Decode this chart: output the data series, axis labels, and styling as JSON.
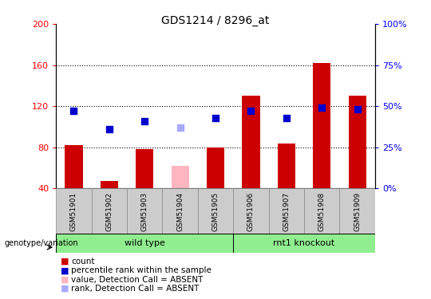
{
  "title": "GDS1214 / 8296_at",
  "categories": [
    "GSM51901",
    "GSM51902",
    "GSM51903",
    "GSM51904",
    "GSM51905",
    "GSM51906",
    "GSM51907",
    "GSM51908",
    "GSM51909"
  ],
  "count_values": [
    82,
    47,
    78,
    40,
    80,
    130,
    84,
    162,
    130
  ],
  "rank_values": [
    47,
    36,
    41,
    null,
    43,
    47,
    43,
    49,
    48
  ],
  "absent_count": [
    null,
    null,
    null,
    62,
    null,
    null,
    null,
    null,
    null
  ],
  "absent_rank": [
    null,
    null,
    null,
    37,
    null,
    null,
    null,
    null,
    null
  ],
  "ylim_left": [
    40,
    200
  ],
  "ylim_right": [
    0,
    100
  ],
  "yticks_left": [
    40,
    80,
    120,
    160,
    200
  ],
  "yticks_right": [
    0,
    25,
    50,
    75,
    100
  ],
  "left_tick_labels": [
    "40",
    "80",
    "120",
    "160",
    "200"
  ],
  "right_tick_labels": [
    "0%",
    "25%",
    "50%",
    "75%",
    "100%"
  ],
  "bar_color": "#CC0000",
  "rank_color": "#0000CC",
  "absent_bar_color": "#FFB6C1",
  "absent_rank_color": "#AAAAFF",
  "legend_items": [
    {
      "label": "count",
      "color": "#CC0000"
    },
    {
      "label": "percentile rank within the sample",
      "color": "#0000CC"
    },
    {
      "label": "value, Detection Call = ABSENT",
      "color": "#FFB6C1"
    },
    {
      "label": "rank, Detection Call = ABSENT",
      "color": "#AAAAFF"
    }
  ],
  "group_annotation_label": "genotype/variation",
  "bar_width": 0.5,
  "rank_marker_size": 40,
  "figsize": [
    5.4,
    3.75
  ],
  "dpi": 100
}
